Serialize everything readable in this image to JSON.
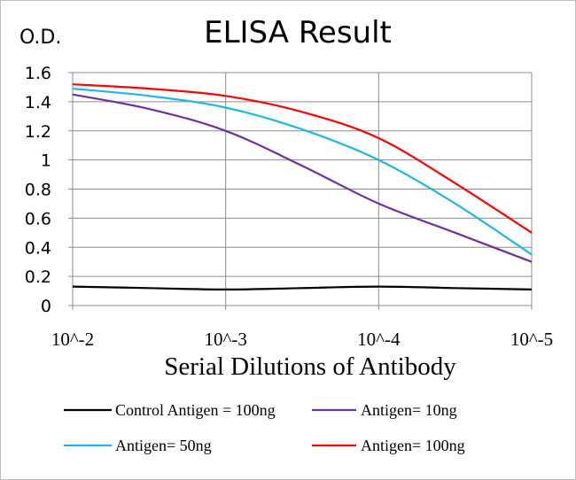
{
  "chart_data": {
    "type": "line",
    "title": "ELISA Result",
    "ylabel": "O.D.",
    "xlabel": "Serial  Dilutions  of Antibody",
    "x_tick_labels": [
      "10^-2",
      "10^-3",
      "10^-4",
      "10^-5"
    ],
    "x": [
      -2,
      -3,
      -4,
      -5
    ],
    "x_scale": "log",
    "ylim": [
      0,
      1.6
    ],
    "y_ticks": [
      0,
      0.2,
      0.4,
      0.6,
      0.8,
      1,
      1.2,
      1.4,
      1.6
    ],
    "grid": "vertical and horizontal major gridlines",
    "legend_position": "bottom",
    "series": [
      {
        "name": "Control Antigen = 100ng",
        "color": "#000000",
        "points": [
          [
            -2,
            0.13
          ],
          [
            -2.5,
            0.12
          ],
          [
            -3,
            0.11
          ],
          [
            -3.5,
            0.12
          ],
          [
            -4,
            0.13
          ],
          [
            -4.5,
            0.12
          ],
          [
            -5,
            0.11
          ]
        ]
      },
      {
        "name": "Antigen= 10ng",
        "color": "#7030a0",
        "points": [
          [
            -2,
            1.45
          ],
          [
            -2.5,
            1.35
          ],
          [
            -3,
            1.2
          ],
          [
            -3.5,
            0.96
          ],
          [
            -4,
            0.7
          ],
          [
            -4.5,
            0.5
          ],
          [
            -5,
            0.3
          ]
        ]
      },
      {
        "name": "Antigen= 50ng",
        "color": "#1fb6e6",
        "points": [
          [
            -2,
            1.49
          ],
          [
            -2.5,
            1.44
          ],
          [
            -3,
            1.36
          ],
          [
            -3.5,
            1.21
          ],
          [
            -4,
            1.0
          ],
          [
            -4.5,
            0.7
          ],
          [
            -5,
            0.35
          ]
        ]
      },
      {
        "name": "Antigen= 100ng",
        "color": "#ff0000",
        "points": [
          [
            -2,
            1.52
          ],
          [
            -2.5,
            1.49
          ],
          [
            -3,
            1.44
          ],
          [
            -3.5,
            1.33
          ],
          [
            -4,
            1.15
          ],
          [
            -4.5,
            0.84
          ],
          [
            -5,
            0.5
          ]
        ]
      }
    ]
  }
}
